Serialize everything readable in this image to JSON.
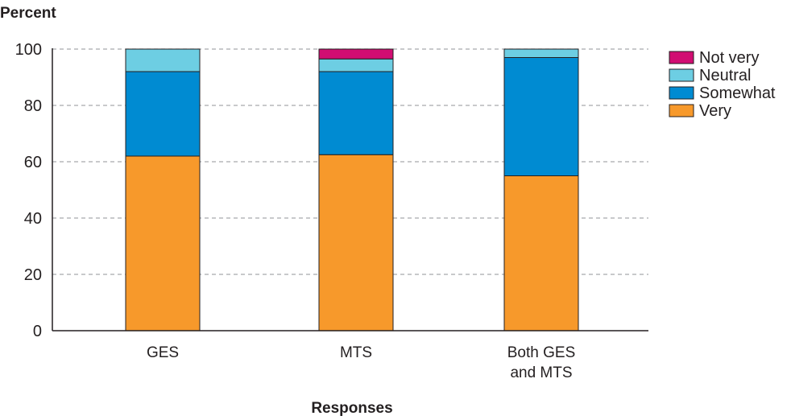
{
  "chart_data": {
    "type": "bar",
    "stacked": true,
    "title": "",
    "ylabel": "Percent",
    "xlabel": "Responses",
    "ylim": [
      0,
      100
    ],
    "yticks": [
      0,
      20,
      40,
      60,
      80,
      100
    ],
    "grid": true,
    "legend_position": "top-right",
    "categories": [
      [
        "GES"
      ],
      [
        "MTS"
      ],
      [
        "Both GES",
        "and MTS"
      ]
    ],
    "series": [
      {
        "name": "Very",
        "color": "#f7992b",
        "values": [
          62,
          62.5,
          55
        ]
      },
      {
        "name": "Somewhat",
        "color": "#008bd2",
        "values": [
          30,
          29.5,
          42
        ]
      },
      {
        "name": "Neutral",
        "color": "#6dcee3",
        "values": [
          8,
          4.5,
          3
        ]
      },
      {
        "name": "Not very",
        "color": "#d10d72",
        "values": [
          0,
          3.5,
          0
        ]
      }
    ],
    "legend_order": [
      "Not very",
      "Neutral",
      "Somewhat",
      "Very"
    ]
  }
}
